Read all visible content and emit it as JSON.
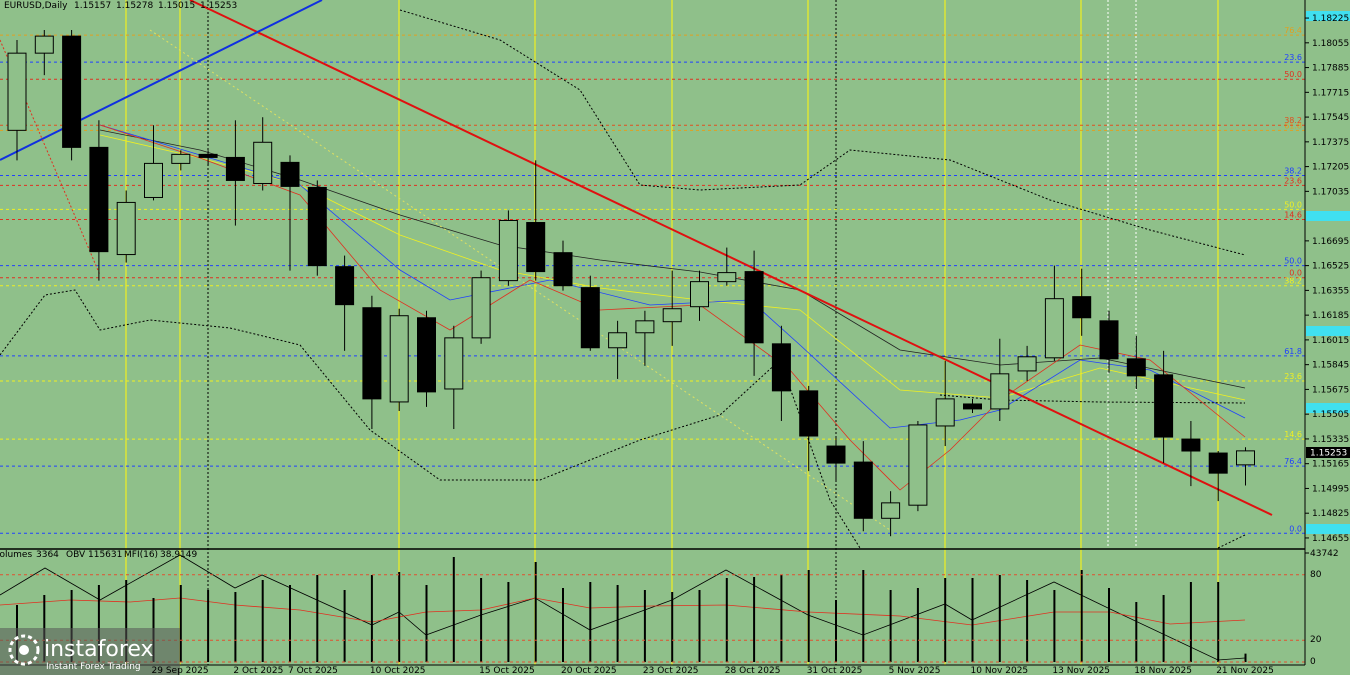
{
  "header": {
    "symbol": "EURUSD,Daily"
  },
  "chart_data": {
    "type": "candlestick",
    "categories": [
      null,
      null,
      null,
      null,
      null,
      "29 Sep 2025",
      null,
      null,
      "2 Oct 2025",
      null,
      "7 Oct 2025",
      null,
      null,
      "10 Oct 2025",
      null,
      null,
      null,
      "15 Oct 2025",
      null,
      null,
      "20 Oct 2025",
      null,
      null,
      "23 Oct 2025",
      null,
      null,
      "28 Oct 2025",
      null,
      null,
      "31 Oct 2025",
      null,
      null,
      "5 Nov 2025",
      null,
      null,
      "10 Nov 2025",
      null,
      null,
      "13 Nov 2025",
      null,
      null,
      "18 Nov 2025",
      null,
      null,
      "21 Nov 2025",
      null
    ],
    "open": [
      1.17454,
      1.17984,
      1.18101,
      1.17337,
      1.16601,
      1.16993,
      1.17227,
      1.17289,
      1.17268,
      1.17089,
      1.17234,
      1.17062,
      1.16518,
      1.16236,
      1.15589,
      1.16167,
      1.15678,
      1.16029,
      1.16422,
      1.16821,
      1.16614,
      1.16374,
      1.15961,
      1.16064,
      1.1614,
      1.16243,
      1.16415,
      1.16484,
      1.15988,
      1.15665,
      1.15286,
      1.15176,
      1.1479,
      1.1488,
      1.15424,
      1.15575,
      1.15541,
      1.15802,
      1.15892,
      1.16312,
      1.16146,
      1.15885,
      1.15775,
      1.15334,
      1.15238,
      1.15157
    ],
    "high": [
      1.18074,
      1.18143,
      1.18143,
      1.17523,
      1.17041,
      1.17489,
      1.17317,
      1.17317,
      1.17523,
      1.17544,
      1.17282,
      1.1711,
      1.16594,
      1.16318,
      1.16229,
      1.16215,
      1.16112,
      1.16491,
      1.16904,
      1.17248,
      1.16697,
      1.16456,
      1.16146,
      1.16215,
      1.16491,
      1.16491,
      1.16649,
      1.16628,
      1.16112,
      1.15699,
      1.15355,
      1.1532,
      1.14976,
      1.15458,
      1.15871,
      1.1561,
      1.16023,
      1.15974,
      1.16525,
      1.16504,
      1.16215,
      1.16043,
      1.1594,
      1.15458,
      1.15252,
      1.15278
    ],
    "low": [
      1.17248,
      1.17833,
      1.17248,
      1.16422,
      1.16546,
      1.16973,
      1.17179,
      1.17213,
      1.168,
      1.17041,
      1.16491,
      1.16456,
      1.1594,
      1.15403,
      1.15527,
      1.15555,
      1.15403,
      1.15988,
      1.16387,
      1.16422,
      1.16353,
      1.1594,
      1.15747,
      1.15837,
      1.15974,
      1.16146,
      1.16387,
      1.15768,
      1.15458,
      1.15114,
      1.15045,
      1.14701,
      1.14667,
      1.14839,
      1.15286,
      1.15513,
      1.15458,
      1.15733,
      1.15871,
      1.16043,
      1.15789,
      1.15678,
      1.15169,
      1.15011,
      1.14908,
      1.15015
    ],
    "close": [
      1.17984,
      1.18101,
      1.17337,
      1.16621,
      1.16959,
      1.17227,
      1.17289,
      1.17268,
      1.1711,
      1.17372,
      1.17069,
      1.16525,
      1.16257,
      1.1561,
      1.16181,
      1.15658,
      1.16029,
      1.16442,
      1.16835,
      1.16484,
      1.16387,
      1.15961,
      1.16064,
      1.16146,
      1.16229,
      1.16415,
      1.16477,
      1.15995,
      1.15665,
      1.15355,
      1.15169,
      1.1479,
      1.14896,
      1.15431,
      1.1561,
      1.15541,
      1.15782,
      1.15899,
      1.16298,
      1.16167,
      1.15885,
      1.15768,
      1.15348,
      1.15252,
      1.151,
      1.15253
    ],
    "up_color": "#8fc08a",
    "down_color": "#000000",
    "ylim": [
      1.14586,
      1.18349
    ],
    "yticks": [
      1.18225,
      1.18055,
      1.17885,
      1.17715,
      1.17545,
      1.17375,
      1.17205,
      1.17035,
      1.16695,
      1.16525,
      1.16355,
      1.16185,
      1.16015,
      1.15845,
      1.15675,
      1.15505,
      1.15335,
      1.15165,
      1.14995,
      1.14825,
      1.14655
    ],
    "levels": [
      {
        "label": "76.4",
        "value": 1.18108,
        "color": "#e0a020"
      },
      {
        "label": "23.6",
        "value": 1.17922,
        "color": "#2040ff"
      },
      {
        "label": "50.0",
        "value": 1.17805,
        "color": "#e03020"
      },
      {
        "label": "61.8",
        "value": 1.17454,
        "color": "#e0a020"
      },
      {
        "label": "38.2",
        "value": 1.17489,
        "color": "#e05020"
      },
      {
        "label": "38.2",
        "value": 1.17144,
        "color": "#2040ff"
      },
      {
        "label": "23.6",
        "value": 1.17076,
        "color": "#e03020"
      },
      {
        "label": "50.0",
        "value": 1.16911,
        "color": "#f0f020"
      },
      {
        "label": "14.6",
        "value": 1.16842,
        "color": "#e03020"
      },
      {
        "label": "50.0",
        "value": 1.16525,
        "color": "#2040ff"
      },
      {
        "label": "0.0",
        "value": 1.16442,
        "color": "#e03020"
      },
      {
        "label": "38.2",
        "value": 1.16387,
        "color": "#f0f020"
      },
      {
        "label": "61.8",
        "value": 1.15905,
        "color": "#2040ff"
      },
      {
        "label": "23.6",
        "value": 1.15733,
        "color": "#f0f020"
      },
      {
        "label": "14.6",
        "value": 1.15334,
        "color": "#f0f020"
      },
      {
        "label": "76.4",
        "value": 1.15148,
        "color": "#2040ff"
      },
      {
        "label": "0.0",
        "value": 1.14687,
        "color": "#2040ff"
      }
    ],
    "volume": {
      "type": "bar",
      "title": "Volumes",
      "color": "#000000",
      "values": [
        22874,
        26887,
        28894,
        30900,
        32907,
        25683,
        30900,
        28894,
        28091,
        32907,
        30900,
        34913,
        28894,
        34913,
        36117,
        30900,
        42137,
        33709,
        32104,
        40130,
        29696,
        32104,
        30900,
        28894,
        28091,
        28894,
        33709,
        34111,
        34913,
        36920,
        24881,
        36920,
        28894,
        29696,
        33709,
        33709,
        34913,
        32907,
        28894,
        36920,
        29696,
        24078,
        26887,
        32104,
        32104,
        3364
      ],
      "ylim": [
        0,
        43742
      ],
      "yticks": [
        43742
      ]
    },
    "obv": {
      "title": "OBV",
      "value": 115631
    },
    "mfi": {
      "title": "MFI(16)",
      "value": 38.9149,
      "ylim": [
        0,
        100
      ],
      "yticks": [
        80,
        20,
        0
      ]
    }
  },
  "watermark": {
    "brand": "instaforex",
    "tagline": "Instant Forex Trading"
  }
}
